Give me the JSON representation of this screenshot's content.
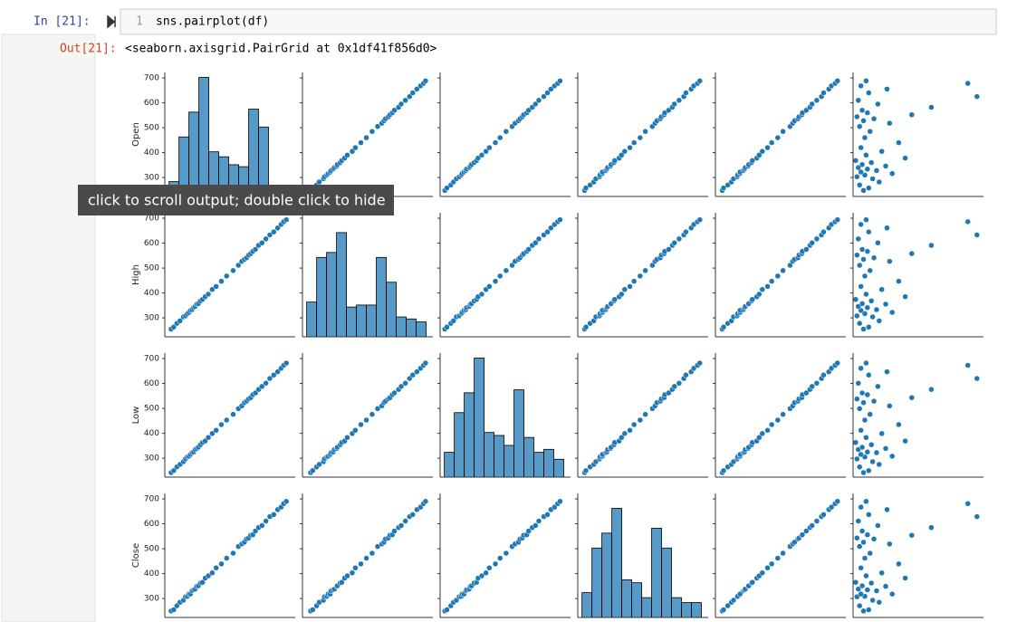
{
  "cell": {
    "in_prompt": "In [21]:",
    "line_number": "1",
    "code": "sns.pairplot(df)",
    "out_prompt": "Out[21]:",
    "output_text": "<seaborn.axisgrid.PairGrid at 0x1df41f856d0>"
  },
  "tooltip": "click to scroll output; double click to hide",
  "chart_data": {
    "type": "pairplot",
    "color": "#1f77b4",
    "yticks": [
      300,
      400,
      500,
      600,
      700
    ],
    "hist_ylim": [
      0,
      125
    ],
    "series": [
      {
        "name": "Open",
        "lim": [
          224,
          722
        ],
        "values": [
          248,
          258,
          270,
          282,
          295,
          303,
          310,
          316,
          322,
          328,
          334,
          340,
          346,
          352,
          360,
          368,
          378,
          390,
          405,
          420,
          440,
          460,
          485,
          505,
          518,
          528,
          536,
          544,
          552,
          560,
          570,
          582,
          595,
          610,
          625,
          640,
          655,
          668,
          678,
          688
        ]
      },
      {
        "name": "High",
        "lim": [
          224,
          722
        ],
        "values": [
          255,
          263,
          278,
          288,
          304,
          308,
          317,
          322,
          330,
          333,
          341,
          346,
          355,
          357,
          368,
          374,
          385,
          395,
          414,
          426,
          447,
          468,
          490,
          511,
          527,
          535,
          541,
          552,
          558,
          567,
          575,
          591,
          601,
          617,
          633,
          645,
          661,
          675,
          686,
          694
        ]
      },
      {
        "name": "Low",
        "lim": [
          224,
          722
        ],
        "values": [
          242,
          250,
          265,
          275,
          286,
          297,
          305,
          308,
          315,
          322,
          325,
          335,
          339,
          344,
          354,
          363,
          369,
          383,
          399,
          412,
          435,
          453,
          476,
          499,
          510,
          523,
          529,
          538,
          543,
          555,
          562,
          576,
          588,
          601,
          620,
          634,
          647,
          661,
          673,
          682
        ]
      },
      {
        "name": "Close",
        "lim": [
          224,
          722
        ],
        "values": [
          250,
          255,
          271,
          285,
          293,
          307,
          309,
          318,
          318,
          331,
          335,
          338,
          349,
          351,
          362,
          365,
          382,
          391,
          403,
          423,
          439,
          462,
          482,
          509,
          519,
          526,
          539,
          543,
          554,
          556,
          571,
          585,
          593,
          611,
          629,
          637,
          657,
          667,
          681,
          690
        ]
      },
      {
        "lim": [
          224,
          722
        ],
        "values": [
          250,
          255,
          271,
          285,
          293,
          307,
          309,
          318,
          318,
          331,
          335,
          338,
          349,
          351,
          362,
          365,
          382,
          391,
          403,
          423,
          439,
          462,
          482,
          509,
          519,
          526,
          539,
          543,
          554,
          556,
          571,
          585,
          593,
          611,
          629,
          637,
          657,
          667,
          681,
          690
        ]
      },
      {
        "lim": [
          0,
          100
        ],
        "values": [
          8,
          12,
          5,
          20,
          15,
          3,
          9,
          30,
          6,
          18,
          11,
          4,
          25,
          7,
          14,
          2,
          40,
          10,
          22,
          6,
          35,
          9,
          13,
          5,
          28,
          8,
          16,
          3,
          45,
          11,
          7,
          60,
          19,
          4,
          95,
          12,
          26,
          6,
          88,
          10
        ]
      }
    ],
    "histograms": [
      {
        "bins": [
          240,
          278,
          316,
          354,
          392,
          430,
          468,
          506,
          544,
          582,
          620,
          658,
          696
        ],
        "counts": [
          15,
          60,
          85,
          120,
          45,
          40,
          32,
          30,
          88,
          70,
          10,
          10
        ]
      },
      {
        "bins": [
          240,
          278,
          316,
          354,
          392,
          430,
          468,
          506,
          544,
          582,
          620,
          658,
          696
        ],
        "counts": [
          35,
          80,
          85,
          105,
          30,
          32,
          32,
          80,
          55,
          20,
          18,
          15
        ]
      },
      {
        "bins": [
          240,
          278,
          316,
          354,
          392,
          430,
          468,
          506,
          544,
          582,
          620,
          658,
          696
        ],
        "counts": [
          25,
          65,
          85,
          120,
          45,
          42,
          32,
          88,
          40,
          25,
          28,
          18
        ]
      },
      {
        "bins": [
          240,
          278,
          316,
          354,
          392,
          430,
          468,
          506,
          544,
          582,
          620,
          658,
          696
        ],
        "counts": [
          25,
          70,
          85,
          110,
          38,
          35,
          20,
          90,
          70,
          20,
          15,
          15
        ]
      }
    ]
  }
}
